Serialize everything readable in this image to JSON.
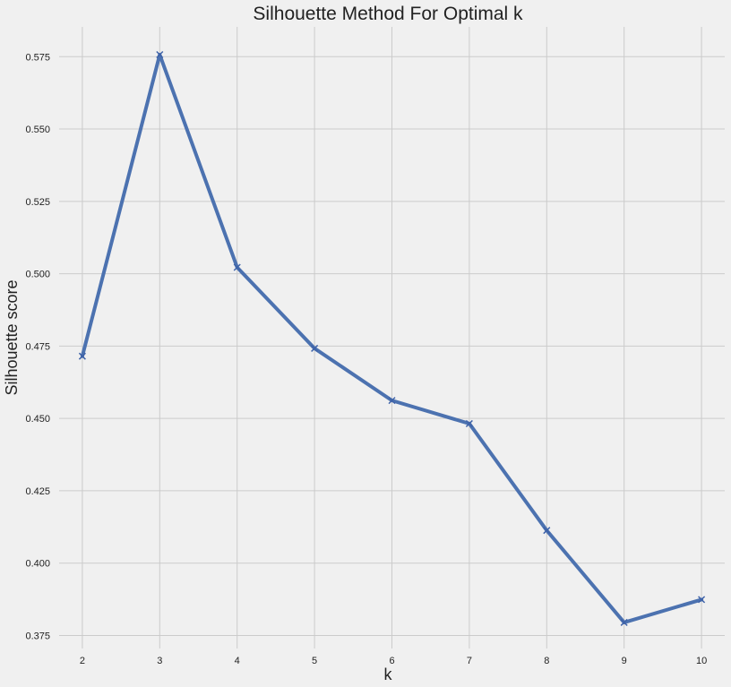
{
  "chart_data": {
    "type": "line",
    "title": "Silhouette Method For Optimal k",
    "xlabel": "k",
    "ylabel": "Silhouette score",
    "x": [
      2,
      3,
      4,
      5,
      6,
      7,
      8,
      9,
      10
    ],
    "series": [
      {
        "values": [
          0.4715,
          0.5757,
          0.5022,
          0.4742,
          0.4562,
          0.4482,
          0.4113,
          0.3795,
          0.3874
        ],
        "marker": "x",
        "color": "#4c72b0"
      }
    ],
    "xlim": [
      1.7,
      10.3
    ],
    "ylim": [
      0.3705,
      0.5853
    ],
    "xticks": [
      "2",
      "3",
      "4",
      "5",
      "6",
      "7",
      "8",
      "9",
      "10"
    ],
    "yticks": [
      "0.375",
      "0.400",
      "0.425",
      "0.450",
      "0.475",
      "0.500",
      "0.525",
      "0.550",
      "0.575"
    ],
    "grid": true,
    "background": "#f0f0f0",
    "grid_color": "#cbcbcb"
  }
}
